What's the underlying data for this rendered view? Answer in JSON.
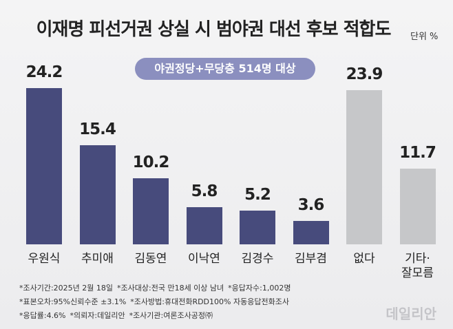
{
  "chart_data": {
    "type": "bar",
    "title": "이재명 피선거권 상실 시 범야권 대선 후보 적합도",
    "unit": "단위 %",
    "subtitle": "야권정당+무당층 514명 대상",
    "categories": [
      "우원식",
      "추미애",
      "김동연",
      "이낙연",
      "김경수",
      "김부겸",
      "없다",
      "기타·\n잘모름"
    ],
    "values": [
      24.2,
      15.4,
      10.2,
      5.8,
      5.2,
      3.6,
      23.9,
      11.7
    ],
    "colors": [
      "#474b7c",
      "#474b7c",
      "#474b7c",
      "#474b7c",
      "#474b7c",
      "#474b7c",
      "#c6c7c9",
      "#c6c7c9"
    ],
    "notes": [
      [
        "*조사기간:2025년 2월 18일",
        "*조사대상:전국 만18세 이상 남녀",
        "*응답자수:1,002명"
      ],
      [
        "*표본오차:95%신뢰수준 ±3.1%",
        "*조사방법:휴대전화RDD100% 자동응답전화조사"
      ],
      [
        "*응답률:4.6%",
        "*의뢰자:데일리안",
        "*조사기관:여론조사공정㈜"
      ]
    ],
    "watermark": "데일리안"
  }
}
